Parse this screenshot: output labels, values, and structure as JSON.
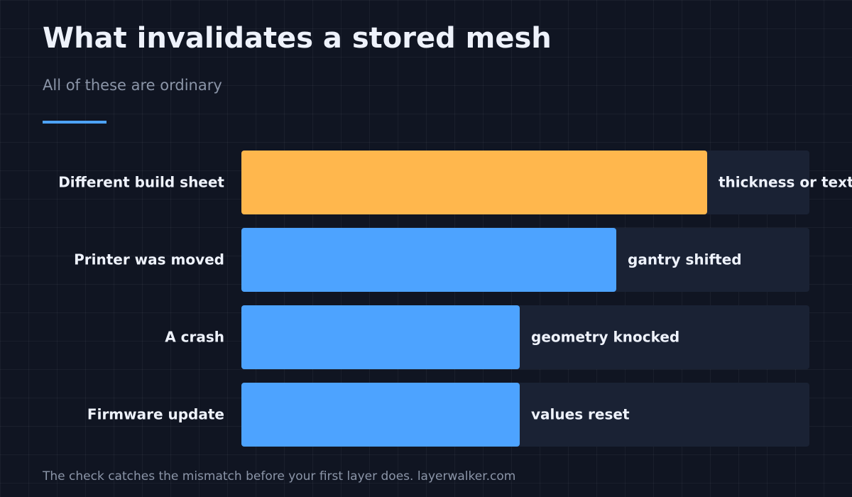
{
  "chart_data": {
    "type": "bar",
    "orientation": "horizontal",
    "title": "What invalidates a stored mesh",
    "subtitle": "All of these are ordinary",
    "categories": [
      "Different build sheet",
      "Printer was moved",
      "A crash",
      "Firmware update"
    ],
    "values": [
      82,
      66,
      49,
      49
    ],
    "annotations": [
      "thickness or texture",
      "gantry shifted",
      "geometry knocked",
      "values reset"
    ],
    "colors": [
      "#ffb74d",
      "#4da3ff",
      "#4da3ff",
      "#4da3ff"
    ],
    "xlim": [
      0,
      100
    ],
    "footer": "The check catches the mismatch before your first layer does. layerwalker.com"
  }
}
